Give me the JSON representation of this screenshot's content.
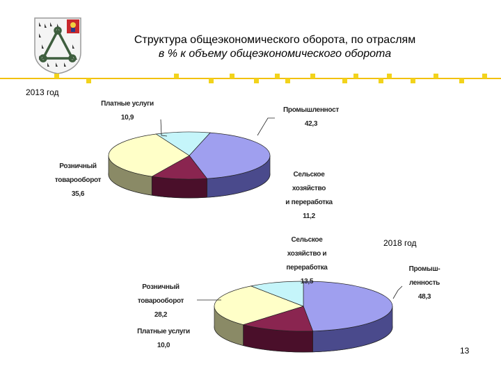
{
  "slide": {
    "title": "Структура общеэкономического оборота, по отраслям",
    "subtitle": "в % к объему общеэкономического оборота",
    "page_number": "13",
    "accent_color": "#f2c10a"
  },
  "logo": {
    "icon": "city-coat-of-arms-icon"
  },
  "chart_data": [
    {
      "type": "pie",
      "title": "2013 год",
      "three_d": true,
      "slices": [
        {
          "label_lines": [
            "Промышленност"
          ],
          "value_text": "42,3",
          "value": 42.3,
          "color": "#9f9fef"
        },
        {
          "label_lines": [
            "Сельское",
            "хозяйство",
            "и переработка"
          ],
          "value_text": "11,2",
          "value": 11.2,
          "color": "#8a2550"
        },
        {
          "label_lines": [
            "Розничный",
            "товарооборот"
          ],
          "value_text": "35,6",
          "value": 35.6,
          "color": "#ffffc8"
        },
        {
          "label_lines": [
            "Платные услуги"
          ],
          "value_text": "10,9",
          "value": 10.9,
          "color": "#c5f5fa"
        }
      ]
    },
    {
      "type": "pie",
      "title": "2018 год",
      "three_d": true,
      "slices": [
        {
          "label_lines": [
            "Промыш-",
            "ленность"
          ],
          "value_text": "48,3",
          "value": 48.3,
          "color": "#9f9fef"
        },
        {
          "label_lines": [
            "Сельское",
            "хозяйство и",
            "переработка"
          ],
          "value_text": "13,5",
          "value": 13.5,
          "color": "#8a2550"
        },
        {
          "label_lines": [
            "Розничный",
            "товарооборот"
          ],
          "value_text": "28,2",
          "value": 28.2,
          "color": "#ffffc8"
        },
        {
          "label_lines": [
            "Платные услуги"
          ],
          "value_text": "10,0",
          "value": 10.0,
          "color": "#c5f5fa"
        }
      ]
    }
  ]
}
